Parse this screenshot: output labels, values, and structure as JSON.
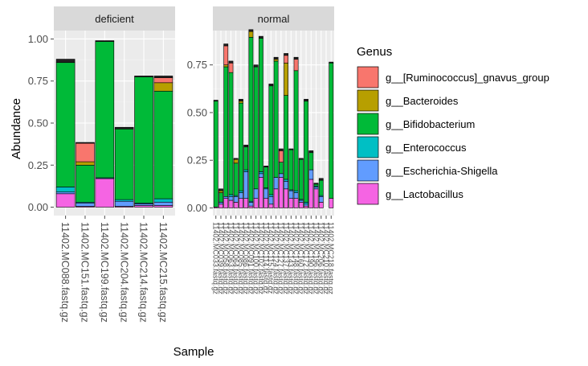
{
  "chart_data": {
    "type": "bar",
    "stacked": true,
    "xlabel": "Sample",
    "ylabel": "Abundance",
    "legend": {
      "title": "Genus",
      "placement": "right",
      "entries": [
        {
          "name": "g__[Ruminococcus]_gnavus_group",
          "color": "#F8766D"
        },
        {
          "name": "g__Bacteroides",
          "color": "#B79F00"
        },
        {
          "name": "g__Bifidobacterium",
          "color": "#00BA38"
        },
        {
          "name": "g__Enterococcus",
          "color": "#00BFC4"
        },
        {
          "name": "g__Escherichia-Shigella",
          "color": "#619CFF"
        },
        {
          "name": "g__Lactobacillus",
          "color": "#F564E3"
        }
      ]
    },
    "panels": [
      {
        "strip": "deficient",
        "ylim": [
          -0.05,
          1.05
        ],
        "yticks": [
          0.0,
          0.25,
          0.5,
          0.75,
          1.0
        ],
        "ytick_labels": [
          "0.00",
          "0.25",
          "0.50",
          "0.75",
          "1.00"
        ],
        "categories": [
          "11402.MC088.fastq.gz",
          "11402.MC151.fastq.gz",
          "11402.MC199.fastq.gz",
          "11402.MC204.fastq.gz",
          "11402.MC214.fastq.gz",
          "11402.MC215.fastq.gz"
        ],
        "series": [
          {
            "name": "g__Lactobacillus",
            "values": [
              0.08,
              0.005,
              0.17,
              0.005,
              0.01,
              0.01
            ]
          },
          {
            "name": "g__Escherichia-Shigella",
            "values": [
              0.01,
              0.02,
              0.0,
              0.03,
              0.01,
              0.02
            ]
          },
          {
            "name": "g__Enterococcus",
            "values": [
              0.03,
              0.005,
              0.005,
              0.01,
              0.005,
              0.02
            ]
          },
          {
            "name": "g__Bifidobacterium",
            "values": [
              0.74,
              0.22,
              0.81,
              0.42,
              0.75,
              0.64
            ]
          },
          {
            "name": "g__Bacteroides",
            "values": [
              0.0,
              0.02,
              0.0,
              0.0,
              0.0,
              0.05
            ]
          },
          {
            "name": "g__[Ruminococcus]_gnavus_group",
            "values": [
              0.0,
              0.11,
              0.0,
              0.0,
              0.0,
              0.03
            ]
          }
        ],
        "other_segments": [
          0.02,
          0.005,
          0.005,
          0.01,
          0.005,
          0.01
        ]
      },
      {
        "strip": "normal",
        "ylim": [
          -0.04,
          0.93
        ],
        "yticks": [
          0.0,
          0.25,
          0.5,
          0.75
        ],
        "ytick_labels": [
          "0.00",
          "0.25",
          "0.50",
          "0.75"
        ],
        "categories": [
          "11402.MC033.fastq.gz",
          "11402.MC039.fastq.gz",
          "11402.MC058.fastq.gz",
          "11402.MC063.fastq.gz",
          "11402.MC064.fastq.gz",
          "11402.MC085.fastq.gz",
          "11402.MC086.fastq.gz",
          "11402.MC091.fastq.gz",
          "11402.MC100.fastq.gz",
          "11402.MC102.fastq.gz",
          "11402.MC114.fastq.gz",
          "11402.MC115.fastq.gz",
          "11402.MC124.fastq.gz",
          "11402.MC127.fastq.gz",
          "11402.MC137.fastq.gz",
          "11402.MC143.fastq.gz",
          "11402.MC148.fastq.gz",
          "11402.MC160.fastq.gz",
          "11402.MC172.fastq.gz",
          "11402.MC190.fastq.gz",
          "11402.MC196.fastq.gz",
          "11402.MC206.fastq.gz",
          "11402.MC210.fastq.gz",
          "11402.MC218.fastq.gz"
        ],
        "series": [
          {
            "name": "g__Lactobacillus",
            "values": [
              0.005,
              0.02,
              0.05,
              0.04,
              0.03,
              0.05,
              0.05,
              0.01,
              0.05,
              0.16,
              0.05,
              0.02,
              0.1,
              0.16,
              0.1,
              0.05,
              0.05,
              0.03,
              0.01,
              0.15,
              0.1,
              0.03,
              0.0,
              0.05
            ]
          },
          {
            "name": "g__Escherichia-Shigella",
            "values": [
              0.0,
              0.01,
              0.01,
              0.02,
              0.03,
              0.03,
              0.14,
              0.02,
              0.05,
              0.02,
              0.05,
              0.04,
              0.06,
              0.02,
              0.04,
              0.04,
              0.03,
              0.01,
              0.01,
              0.05,
              0.01,
              0.03,
              0.0,
              0.0
            ]
          },
          {
            "name": "g__Enterococcus",
            "values": [
              0.0,
              0.0,
              0.0,
              0.01,
              0.005,
              0.01,
              0.01,
              0.005,
              0.0,
              0.01,
              0.005,
              0.01,
              0.0,
              0.0,
              0.01,
              0.005,
              0.01,
              0.005,
              0.01,
              0.0,
              0.005,
              0.005,
              0.0,
              0.0
            ]
          },
          {
            "name": "g__Bifidobacterium",
            "values": [
              0.555,
              0.05,
              0.68,
              0.64,
              0.17,
              0.46,
              0.12,
              0.86,
              0.64,
              0.7,
              0.11,
              0.57,
              0.61,
              0.06,
              0.44,
              0.21,
              0.63,
              0.21,
              0.53,
              0.09,
              0.01,
              0.08,
              0.0,
              0.71
            ]
          },
          {
            "name": "g__Bacteroides",
            "values": [
              0.0,
              0.01,
              0.01,
              0.0,
              0.02,
              0.01,
              0.0,
              0.03,
              0.0,
              0.0,
              0.0,
              0.0,
              0.01,
              0.0,
              0.17,
              0.0,
              0.0,
              0.0,
              0.0,
              0.0,
              0.0,
              0.0,
              0.0,
              0.0
            ]
          },
          {
            "name": "g__[Ruminococcus]_gnavus_group",
            "values": [
              0.0,
              0.0,
              0.1,
              0.05,
              0.0,
              0.0,
              0.0,
              0.0,
              0.0,
              0.0,
              0.0,
              0.0,
              0.0,
              0.06,
              0.04,
              0.0,
              0.06,
              0.0,
              0.0,
              0.0,
              0.0,
              0.0,
              0.0,
              0.0
            ]
          },
          {
            "name": "",
            "values": [
              0,
              0,
              0,
              0,
              0,
              0,
              0,
              0,
              0,
              0,
              0,
              0,
              0,
              0,
              0,
              0,
              0,
              0,
              0,
              0,
              0,
              0,
              0,
              0
            ]
          }
        ],
        "other_segments": [
          0.005,
          0.01,
          0.01,
          0.01,
          0.005,
          0.01,
          0.01,
          0.01,
          0.01,
          0.01,
          0.005,
          0.01,
          0.01,
          0.01,
          0.01,
          0.005,
          0.01,
          0.005,
          0.01,
          0.01,
          0.005,
          0.01,
          0.0,
          0.005
        ]
      }
    ]
  }
}
